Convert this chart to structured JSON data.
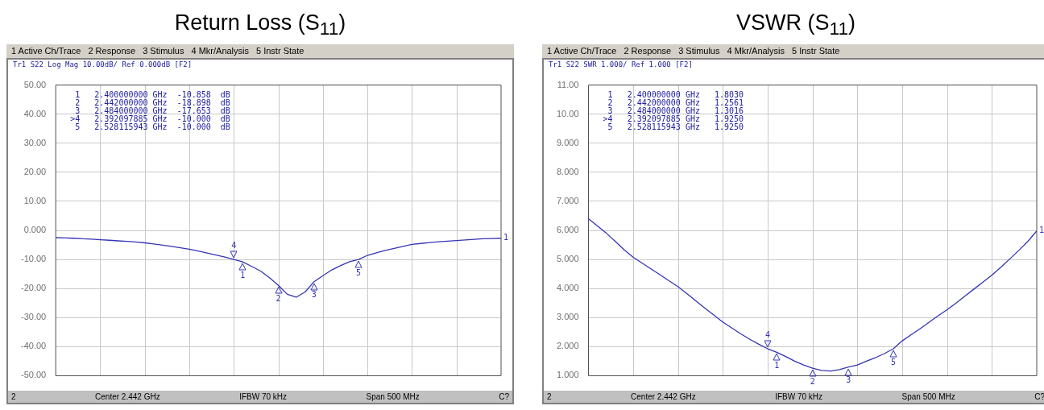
{
  "chart_data": [
    {
      "type": "line",
      "title": "Return Loss (S$_{11}$)",
      "categories": [
        null,
        null,
        null,
        null,
        null,
        null,
        null,
        null,
        null,
        null,
        null,
        null,
        null,
        null,
        null,
        null,
        null,
        null,
        null,
        null,
        null,
        null,
        null,
        null,
        null,
        null,
        null,
        null,
        null,
        null,
        null,
        null,
        null,
        null,
        null,
        null,
        null,
        null,
        null,
        null,
        null,
        null,
        null,
        null,
        null,
        null,
        null,
        null,
        null,
        null,
        null
      ],
      "ylim": [
        -50,
        50
      ],
      "yticks": [
        {
          "value": 50,
          "label": "50.00"
        },
        {
          "value": 40,
          "label": "40.00"
        },
        {
          "value": 30,
          "label": "30.00"
        },
        {
          "value": 20,
          "label": "20.00"
        },
        {
          "value": 10,
          "label": "10.00"
        },
        {
          "value": 0,
          "label": "0.000"
        },
        {
          "value": -10,
          "label": "-10.00"
        },
        {
          "value": -20,
          "label": "-20.00"
        },
        {
          "value": -30,
          "label": "-30.00"
        },
        {
          "value": -40,
          "label": "-40.00"
        },
        {
          "value": -50,
          "label": "-50.00"
        }
      ],
      "tick_labels": "y",
      "grid": true,
      "series": [
        {
          "color": "#3434b4",
          "values": [
            -2.5,
            -2.6,
            -2.7,
            -2.9,
            -3.0,
            -3.2,
            -3.4,
            -3.6,
            -3.8,
            -4.0,
            -4.3,
            -4.7,
            -5.1,
            -5.5,
            -6.0,
            -6.5,
            -7.1,
            -7.8,
            -8.5,
            -9.2,
            -10.0,
            -10.858,
            -12.4,
            -14.0,
            -16.3,
            -18.898,
            -22.0,
            -23.0,
            -21.2,
            -17.653,
            -15.6,
            -13.6,
            -12.1,
            -10.8,
            -10.0,
            -8.6,
            -7.7,
            -6.9,
            -6.2,
            -5.5,
            -4.8,
            -4.5,
            -4.2,
            -3.9,
            -3.7,
            -3.5,
            -3.3,
            -3.1,
            -2.9,
            -2.8,
            -2.7
          ]
        }
      ],
      "annotations": [
        "1 Active Ch/Trace",
        "2 Response",
        "3 Stimulus",
        "4 Mkr/Analysis",
        "5 Instr State",
        "Tr1 S22 Log Mag 10.00dB/ Ref 0.000dB [F2]",
        " 1   2.400000000 GHz  -10.858  dB",
        " 2   2.442000000 GHz  -18.898  dB",
        " 3   2.484000000 GHz  -17.653  dB",
        ">4   2.392097885 GHz  -10.000  dB",
        " 5   2.528115943 GHz  -10.000  dB",
        "2",
        "Center 2.442 GHz",
        "IFBW 70 kHz",
        "Span 500 MHz",
        "C?",
        "1",
        {
          "text": "4",
          "y": -10.0
        },
        {
          "text": "1",
          "y": -10.858
        },
        {
          "text": "2",
          "y": -18.898
        },
        {
          "text": "3",
          "y": -17.653
        },
        {
          "text": "5",
          "y": -10.0
        }
      ]
    },
    {
      "type": "line",
      "title": "VSWR (S$_{11}$)",
      "categories": [
        null,
        null,
        null,
        null,
        null,
        null,
        null,
        null,
        null,
        null,
        null,
        null,
        null,
        null,
        null,
        null,
        null,
        null,
        null,
        null,
        null,
        null,
        null,
        null,
        null,
        null,
        null,
        null,
        null,
        null,
        null,
        null,
        null,
        null,
        null,
        null,
        null,
        null,
        null,
        null,
        null,
        null,
        null,
        null,
        null,
        null,
        null,
        null,
        null,
        null,
        null
      ],
      "ylim": [
        1,
        11
      ],
      "yticks": [
        {
          "value": 11,
          "label": "11.00"
        },
        {
          "value": 10,
          "label": "10.00"
        },
        {
          "value": 9,
          "label": "9.000"
        },
        {
          "value": 8,
          "label": "8.000"
        },
        {
          "value": 7,
          "label": "7.000"
        },
        {
          "value": 6,
          "label": "6.000"
        },
        {
          "value": 5,
          "label": "5.000"
        },
        {
          "value": 4,
          "label": "4.000"
        },
        {
          "value": 3,
          "label": "3.000"
        },
        {
          "value": 2,
          "label": "2.000"
        },
        {
          "value": 1,
          "label": "1.000"
        }
      ],
      "tick_labels": "y",
      "grid": true,
      "series": [
        {
          "color": "#3434b4",
          "values": [
            6.4,
            6.15,
            5.9,
            5.62,
            5.33,
            5.07,
            4.87,
            4.67,
            4.47,
            4.26,
            4.06,
            3.82,
            3.57,
            3.32,
            3.08,
            2.84,
            2.64,
            2.44,
            2.25,
            2.08,
            1.925,
            1.803,
            1.66,
            1.5,
            1.37,
            1.2561,
            1.18,
            1.16,
            1.21,
            1.3016,
            1.37,
            1.5,
            1.62,
            1.76,
            1.925,
            2.2,
            2.41,
            2.62,
            2.84,
            3.06,
            3.27,
            3.5,
            3.74,
            3.98,
            4.22,
            4.46,
            4.73,
            5.02,
            5.31,
            5.62,
            5.98
          ]
        }
      ],
      "annotations": [
        "1 Active Ch/Trace",
        "2 Response",
        "3 Stimulus",
        "4 Mkr/Analysis",
        "5 Instr State",
        "Tr1 S22 SWR 1.000/ Ref 1.000 [F2]",
        " 1   2.400000000 GHz   1.8030",
        " 2   2.442000000 GHz   1.2561",
        " 3   2.484000000 GHz   1.3016",
        ">4   2.392097885 GHz   1.9250",
        " 5   2.528115943 GHz   1.9250",
        "2",
        "Center 2.442 GHz",
        "IFBW 70 kHz",
        "Span 500 MHz",
        "C?",
        "1",
        {
          "text": "4",
          "y": 1.925
        },
        {
          "text": "1",
          "y": 1.803
        },
        {
          "text": "2",
          "y": 1.2561
        },
        {
          "text": "3",
          "y": 1.3016
        },
        {
          "text": "5",
          "y": 1.925
        }
      ]
    }
  ]
}
